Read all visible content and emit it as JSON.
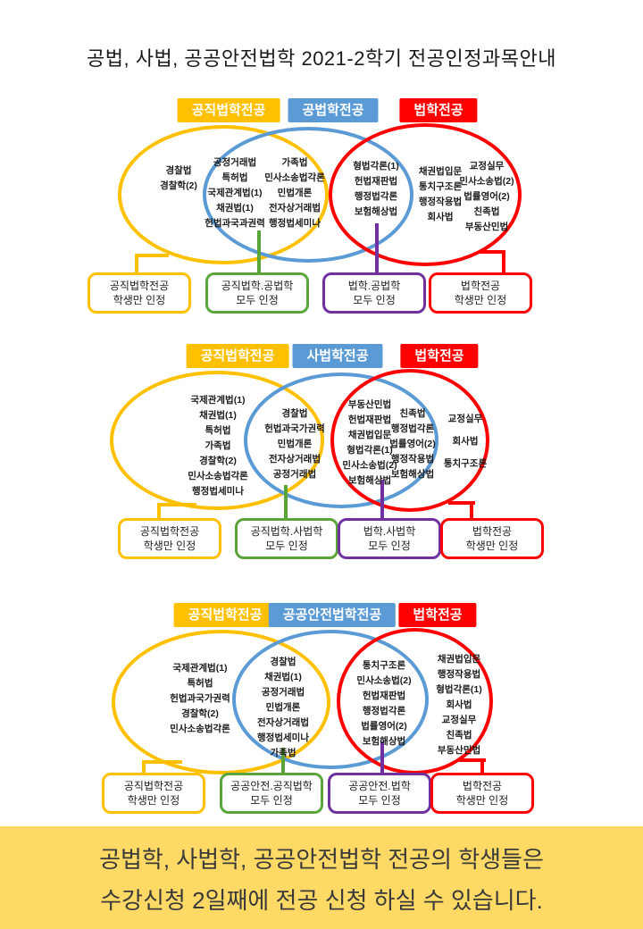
{
  "title": "공법, 사법, 공공안전법학 2021-2학기 전공인정과목안내",
  "colors": {
    "yellow": "#FFC000",
    "blue": "#5B9BD5",
    "red": "#FE0000",
    "green": "#5BA43A",
    "purple": "#7030A0",
    "banner_bg": "#FFD965"
  },
  "sections": [
    {
      "badges": [
        "공직법학전공",
        "공법학전공",
        "법학전공"
      ],
      "columns": [
        [
          "경찰법",
          "경찰학(2)"
        ],
        [
          "공정거래법",
          "특허법",
          "국제관계법(1)",
          "채권법(1)",
          "헌법과국과권력"
        ],
        [
          "가족법",
          "민사소송법각론",
          "민법개론",
          "전자상거래법",
          "행정법세미나"
        ],
        [
          "형법각론(1)",
          "헌법재판법",
          "행정법각론",
          "보험해상법"
        ],
        [
          "채권법입문",
          "통치구조론",
          "행정작용법",
          "회사법"
        ],
        [
          "교정실무",
          "민사소송법(2)",
          "법률영어(2)",
          "친족법",
          "부동산민법"
        ]
      ],
      "boxes": [
        {
          "line1": "공직법학전공",
          "line2": "학생만 인정"
        },
        {
          "line1": "공직법학.공법학",
          "line2": "모두 인정"
        },
        {
          "line1": "법학.공법학",
          "line2": "모두 인정"
        },
        {
          "line1": "법학전공",
          "line2": "학생만 인정"
        }
      ]
    },
    {
      "badges": [
        "공직법학전공",
        "사법학전공",
        "법학전공"
      ],
      "columns": [
        [
          "국제관계법(1)",
          "채권법(1)",
          "특허법",
          "가족법",
          "경찰학(2)",
          "민사소송법각론",
          "행정법세미나"
        ],
        [
          "경찰법",
          "헌법과국가권력",
          "민법개론",
          "전자상거래법",
          "공정거래법"
        ],
        [
          "부동산민법",
          "헌법재판법",
          "채권법입문",
          "형법각론(1)",
          "민사소송법(2)",
          "보험해상법"
        ],
        [
          "친족법",
          "행정법각론",
          "법률영어(2)",
          "행정작용법",
          "보험해상법"
        ],
        [
          "교정실무",
          "회사법",
          "통치구조론"
        ]
      ],
      "boxes": [
        {
          "line1": "공직법학전공",
          "line2": "학생만 인정"
        },
        {
          "line1": "공직법학.사법학",
          "line2": "모두 인정"
        },
        {
          "line1": "법학.사법학",
          "line2": "모두 인정"
        },
        {
          "line1": "법학전공",
          "line2": "학생만 인정"
        }
      ]
    },
    {
      "badges": [
        "공직법학전공",
        "공공안전법학전공",
        "법학전공"
      ],
      "columns": [
        [
          "국제관계법(1)",
          "특허법",
          "헌법과국가권력",
          "경찰학(2)",
          "민사소송법각론"
        ],
        [
          "경찰법",
          "채권법(1)",
          "공정거래법",
          "민법개론",
          "전자상거래법",
          "행정법세미나",
          "가족법"
        ],
        [
          "통치구조론",
          "민사소송법(2)",
          "헌법재판법",
          "행정법각론",
          "법률영어(2)",
          "보험해상법"
        ],
        [
          "채권법입문",
          "행정작용법",
          "형법각론(1)",
          "회사법",
          "교정실무",
          "친족법",
          "부동산민법"
        ]
      ],
      "boxes": [
        {
          "line1": "공직법학전공",
          "line2": "학생만 인정"
        },
        {
          "line1": "공공안전.공직법학",
          "line2": "모두 인정"
        },
        {
          "line1": "공공안전.법학",
          "line2": "모두 인정"
        },
        {
          "line1": "법학전공",
          "line2": "학생만 인정"
        }
      ]
    }
  ],
  "banner": {
    "line1": "공법학, 사법학, 공공안전법학 전공의 학생들은",
    "line2": "수강신청 2일째에 전공 신청 하실 수 있습니다."
  }
}
